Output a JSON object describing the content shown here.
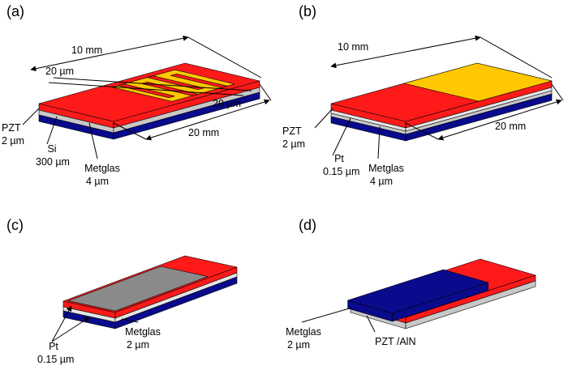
{
  "panels": [
    {
      "label": "(a)",
      "notes": [
        {
          "lines": [
            "10 mm"
          ]
        },
        {
          "lines": [
            "20 µm"
          ]
        },
        {
          "lines": [
            "20 µm"
          ]
        },
        {
          "lines": [
            "20 mm"
          ]
        },
        {
          "lines": [
            "PZT",
            "2 µm"
          ]
        },
        {
          "lines": [
            "Si",
            "300 µm"
          ]
        },
        {
          "lines": [
            "Metglas",
            "4 µm"
          ]
        }
      ]
    },
    {
      "label": "(b)",
      "notes": [
        {
          "lines": [
            "10 mm"
          ]
        },
        {
          "lines": [
            "20 mm"
          ]
        },
        {
          "lines": [
            "PZT",
            "2 µm"
          ]
        },
        {
          "lines": [
            "Pt",
            "0.15 µm"
          ]
        },
        {
          "lines": [
            "Metglas",
            "4 µm"
          ]
        }
      ]
    },
    {
      "label": "(c)",
      "notes": [
        {
          "lines": [
            "Pt",
            "0.15 µm"
          ]
        },
        {
          "lines": [
            "Metglas",
            "2 µm"
          ]
        }
      ]
    },
    {
      "label": "(d)",
      "notes": [
        {
          "lines": [
            "Metglas",
            "2 µm"
          ]
        },
        {
          "lines": [
            "PZT /AlN"
          ]
        }
      ]
    }
  ]
}
